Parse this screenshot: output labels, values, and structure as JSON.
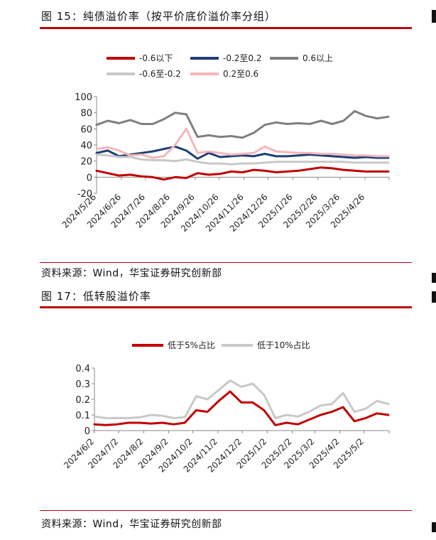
{
  "figures": {
    "fig15": {
      "title": "图 15：纯债溢价率（按平价底价溢价率分组）",
      "source": "资料来源：Wind，华宝证券研究创新部"
    },
    "fig17": {
      "title": "图 17：低转股溢价率",
      "source": "资料来源：Wind，华宝证券研究创新部"
    }
  },
  "chart_data": [
    {
      "type": "line",
      "title": "",
      "xlabel": "",
      "ylabel": "",
      "ylim": [
        -20,
        100
      ],
      "yticks": [
        -20,
        0,
        20,
        40,
        60,
        80,
        100
      ],
      "grid": false,
      "legend_position": "top",
      "x_tick_labels": [
        "2024/5/26",
        "2024/6/26",
        "2024/7/26",
        "2024/8/26",
        "2024/9/26",
        "2024/10/26",
        "2024/11/26",
        "2024/12/26",
        "2025/1/26",
        "2025/2/26",
        "2025/3/26",
        "2025/4/26"
      ],
      "x_tick_dates": [
        "2024-05-26",
        "2024-06-26",
        "2024-07-26",
        "2024-08-26",
        "2024-09-26",
        "2024-10-26",
        "2024-11-26",
        "2024-12-26",
        "2025-01-26",
        "2025-02-26",
        "2025-03-26",
        "2025-04-26"
      ],
      "x_range": [
        "2024-05-26",
        "2025-05-26"
      ],
      "x": [
        "2024-05-26",
        "2024-06-09",
        "2024-06-23",
        "2024-07-07",
        "2024-07-21",
        "2024-08-04",
        "2024-08-18",
        "2024-09-01",
        "2024-09-15",
        "2024-09-29",
        "2024-10-13",
        "2024-10-27",
        "2024-11-10",
        "2024-11-24",
        "2024-12-08",
        "2024-12-22",
        "2025-01-05",
        "2025-01-19",
        "2025-02-02",
        "2025-02-16",
        "2025-03-02",
        "2025-03-16",
        "2025-03-30",
        "2025-04-13",
        "2025-04-27",
        "2025-05-11",
        "2025-05-25"
      ],
      "series": [
        {
          "name": "-0.6以下",
          "color": "#c00000",
          "values": [
            8,
            5,
            2,
            3,
            1,
            0,
            -3,
            0,
            -1,
            5,
            3,
            4,
            7,
            6,
            9,
            8,
            6,
            7,
            8,
            10,
            12,
            11,
            9,
            8,
            7,
            7,
            7
          ]
        },
        {
          "name": "-0.2至0.2",
          "color": "#1f3f74",
          "values": [
            30,
            33,
            26,
            28,
            30,
            32,
            35,
            38,
            33,
            23,
            30,
            25,
            26,
            27,
            26,
            29,
            26,
            26,
            27,
            28,
            27,
            26,
            25,
            24,
            25,
            24,
            24
          ]
        },
        {
          "name": "0.6以上",
          "color": "#7f7f7f",
          "values": [
            65,
            70,
            67,
            71,
            66,
            66,
            72,
            80,
            78,
            50,
            52,
            50,
            51,
            49,
            55,
            65,
            68,
            66,
            67,
            66,
            70,
            66,
            70,
            82,
            76,
            73,
            75
          ]
        },
        {
          "name": "-0.6至-0.2",
          "color": "#c8c8c8",
          "values": [
            28,
            27,
            25,
            25,
            22,
            21,
            21,
            20,
            22,
            19,
            17,
            17,
            16,
            17,
            17,
            18,
            19,
            19,
            19,
            19,
            19,
            19,
            19,
            18,
            18,
            18,
            18
          ]
        },
        {
          "name": "0.2至0.6",
          "color": "#f4b6ba",
          "values": [
            35,
            37,
            33,
            27,
            28,
            24,
            26,
            40,
            60,
            30,
            32,
            30,
            28,
            29,
            30,
            38,
            32,
            31,
            30,
            30,
            29,
            29,
            28,
            27,
            27,
            26,
            26
          ]
        }
      ]
    },
    {
      "type": "line",
      "title": "",
      "xlabel": "",
      "ylabel": "",
      "ylim": [
        0,
        0.4
      ],
      "yticks": [
        0,
        0.1,
        0.2,
        0.3,
        0.4
      ],
      "grid": false,
      "legend_position": "top",
      "x_tick_labels": [
        "2024/6/2",
        "2024/7/2",
        "2024/8/2",
        "2024/9/2",
        "2024/10/2",
        "2024/11/2",
        "2024/12/2",
        "2025/1/2",
        "2025/2/2",
        "2025/3/2",
        "2025/4/2",
        "2025/5/2"
      ],
      "x_tick_dates": [
        "2024-06-02",
        "2024-07-02",
        "2024-08-02",
        "2024-09-02",
        "2024-10-02",
        "2024-11-02",
        "2024-12-02",
        "2025-01-02",
        "2025-02-02",
        "2025-03-02",
        "2025-04-02",
        "2025-05-02"
      ],
      "x_range": [
        "2024-06-02",
        "2025-06-02"
      ],
      "x": [
        "2024-06-02",
        "2024-06-16",
        "2024-06-30",
        "2024-07-14",
        "2024-07-28",
        "2024-08-11",
        "2024-08-25",
        "2024-09-08",
        "2024-09-22",
        "2024-10-06",
        "2024-10-20",
        "2024-11-03",
        "2024-11-17",
        "2024-12-01",
        "2024-12-15",
        "2024-12-29",
        "2025-01-12",
        "2025-01-26",
        "2025-02-09",
        "2025-02-23",
        "2025-03-09",
        "2025-03-23",
        "2025-04-06",
        "2025-04-20",
        "2025-05-04",
        "2025-05-18",
        "2025-06-01"
      ],
      "series": [
        {
          "name": "低于5%占比",
          "color": "#c00000",
          "values": [
            0.04,
            0.035,
            0.04,
            0.05,
            0.05,
            0.045,
            0.05,
            0.04,
            0.05,
            0.13,
            0.12,
            0.19,
            0.25,
            0.18,
            0.18,
            0.13,
            0.035,
            0.05,
            0.04,
            0.07,
            0.1,
            0.12,
            0.15,
            0.06,
            0.08,
            0.11,
            0.1
          ]
        },
        {
          "name": "低于10%占比",
          "color": "#c8c8c8",
          "values": [
            0.09,
            0.08,
            0.08,
            0.08,
            0.085,
            0.1,
            0.095,
            0.08,
            0.085,
            0.22,
            0.2,
            0.26,
            0.32,
            0.28,
            0.3,
            0.23,
            0.08,
            0.1,
            0.09,
            0.12,
            0.16,
            0.17,
            0.24,
            0.12,
            0.14,
            0.19,
            0.17
          ]
        }
      ]
    }
  ]
}
